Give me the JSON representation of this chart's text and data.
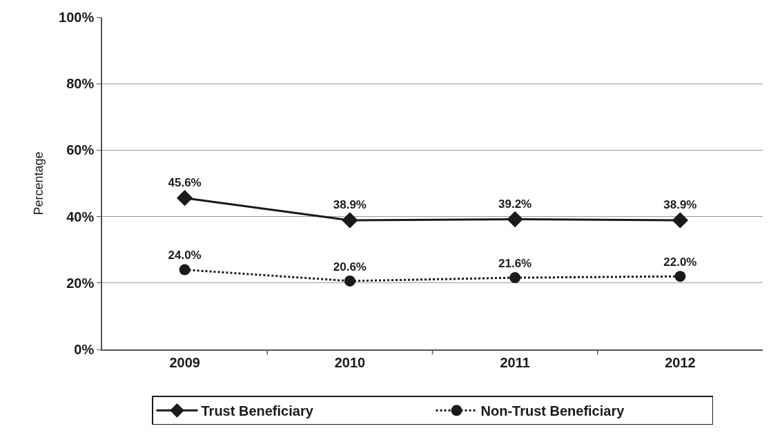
{
  "chart_data": {
    "type": "line",
    "ylabel": "Percentage",
    "categories": [
      "2009",
      "2010",
      "2011",
      "2012"
    ],
    "series": [
      {
        "name": "Trust Beneficiary",
        "color": "#1a1a1a",
        "marker": "diamond",
        "line_style": "solid",
        "values": [
          45.6,
          38.9,
          39.2,
          38.9
        ],
        "value_labels": [
          "45.6%",
          "38.9%",
          "39.2%",
          "38.9%"
        ]
      },
      {
        "name": "Non-Trust Beneficiary",
        "color": "#1a1a1a",
        "marker": "circle",
        "line_style": "dotted",
        "values": [
          24.0,
          20.6,
          21.6,
          22.0
        ],
        "value_labels": [
          "24.0%",
          "20.6%",
          "21.6%",
          "22.0%"
        ]
      }
    ],
    "ylim": [
      0,
      100
    ],
    "yticks": [
      {
        "value": 0,
        "label": "0%"
      },
      {
        "value": 20,
        "label": "20%"
      },
      {
        "value": 40,
        "label": "40%"
      },
      {
        "value": 60,
        "label": "60%"
      },
      {
        "value": 80,
        "label": "80%"
      },
      {
        "value": 100,
        "label": "100%"
      }
    ],
    "grid": "y",
    "legend": "bottom"
  }
}
